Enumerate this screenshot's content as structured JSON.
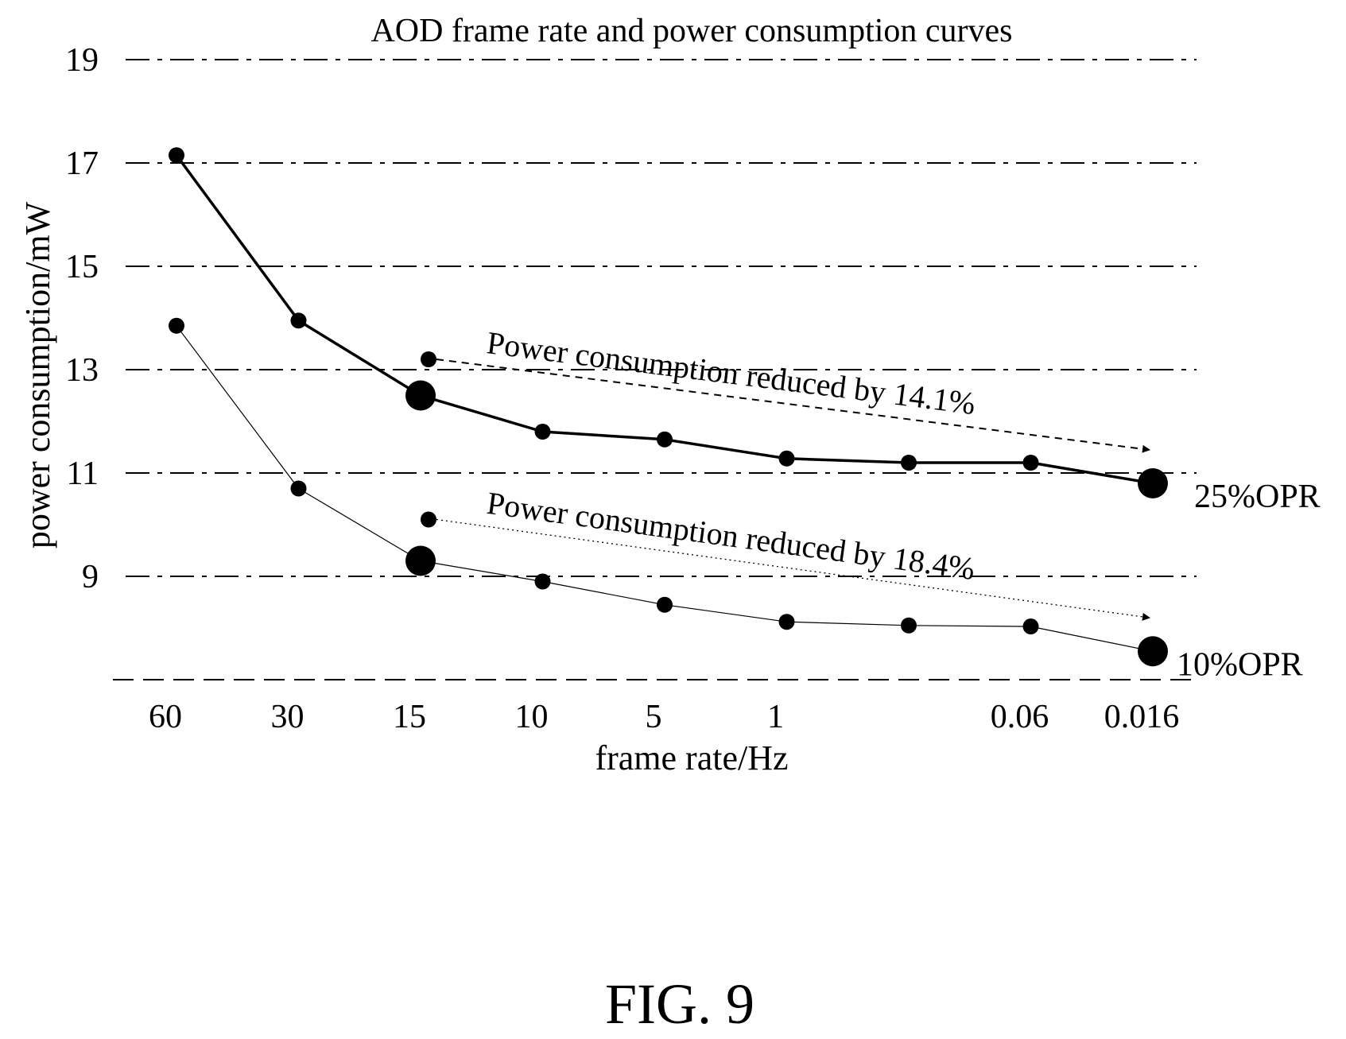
{
  "figure_label": "FIG. 9",
  "chart_data": {
    "type": "line",
    "title": "AOD frame rate and power consumption curves",
    "xlabel": "frame rate/Hz",
    "ylabel": "power consumption/mW",
    "x_tick_labels": [
      "60",
      "30",
      "15",
      "10",
      "5",
      "1",
      "",
      "0.06",
      "0.016"
    ],
    "y_ticks": [
      9,
      11,
      13,
      15,
      17,
      19
    ],
    "ylim": [
      7,
      19
    ],
    "grid": "horizontal dash-dot",
    "series": [
      {
        "name": "25%OPR",
        "x_index": [
          0,
          1,
          2,
          3,
          4,
          5,
          6,
          7,
          8
        ],
        "values": [
          17.15,
          13.95,
          12.5,
          11.8,
          11.65,
          11.28,
          11.2,
          11.2,
          10.8
        ],
        "line": "thick-solid"
      },
      {
        "name": "10%OPR",
        "x_index": [
          0,
          1,
          2,
          3,
          4,
          5,
          6,
          7,
          8
        ],
        "values": [
          13.85,
          10.7,
          9.3,
          8.9,
          8.45,
          8.12,
          8.05,
          8.03,
          7.55
        ],
        "line": "thin-solid"
      }
    ],
    "annotations": [
      {
        "text": "Power consumption reduced by 14.1%",
        "from": {
          "x_index": 2,
          "value": 13.2
        },
        "to": {
          "x_index": 8,
          "value": 11.45
        },
        "style": "dashed-arrow"
      },
      {
        "text": "Power consumption reduced by 18.4%",
        "from": {
          "x_index": 2,
          "value": 10.1
        },
        "to": {
          "x_index": 8,
          "value": 8.2
        },
        "style": "dotted-arrow"
      }
    ],
    "highlighted_points": [
      {
        "series": "25%OPR",
        "x_index": 2
      },
      {
        "series": "25%OPR",
        "x_index": 8
      },
      {
        "series": "10%OPR",
        "x_index": 2
      },
      {
        "series": "10%OPR",
        "x_index": 8
      }
    ]
  }
}
